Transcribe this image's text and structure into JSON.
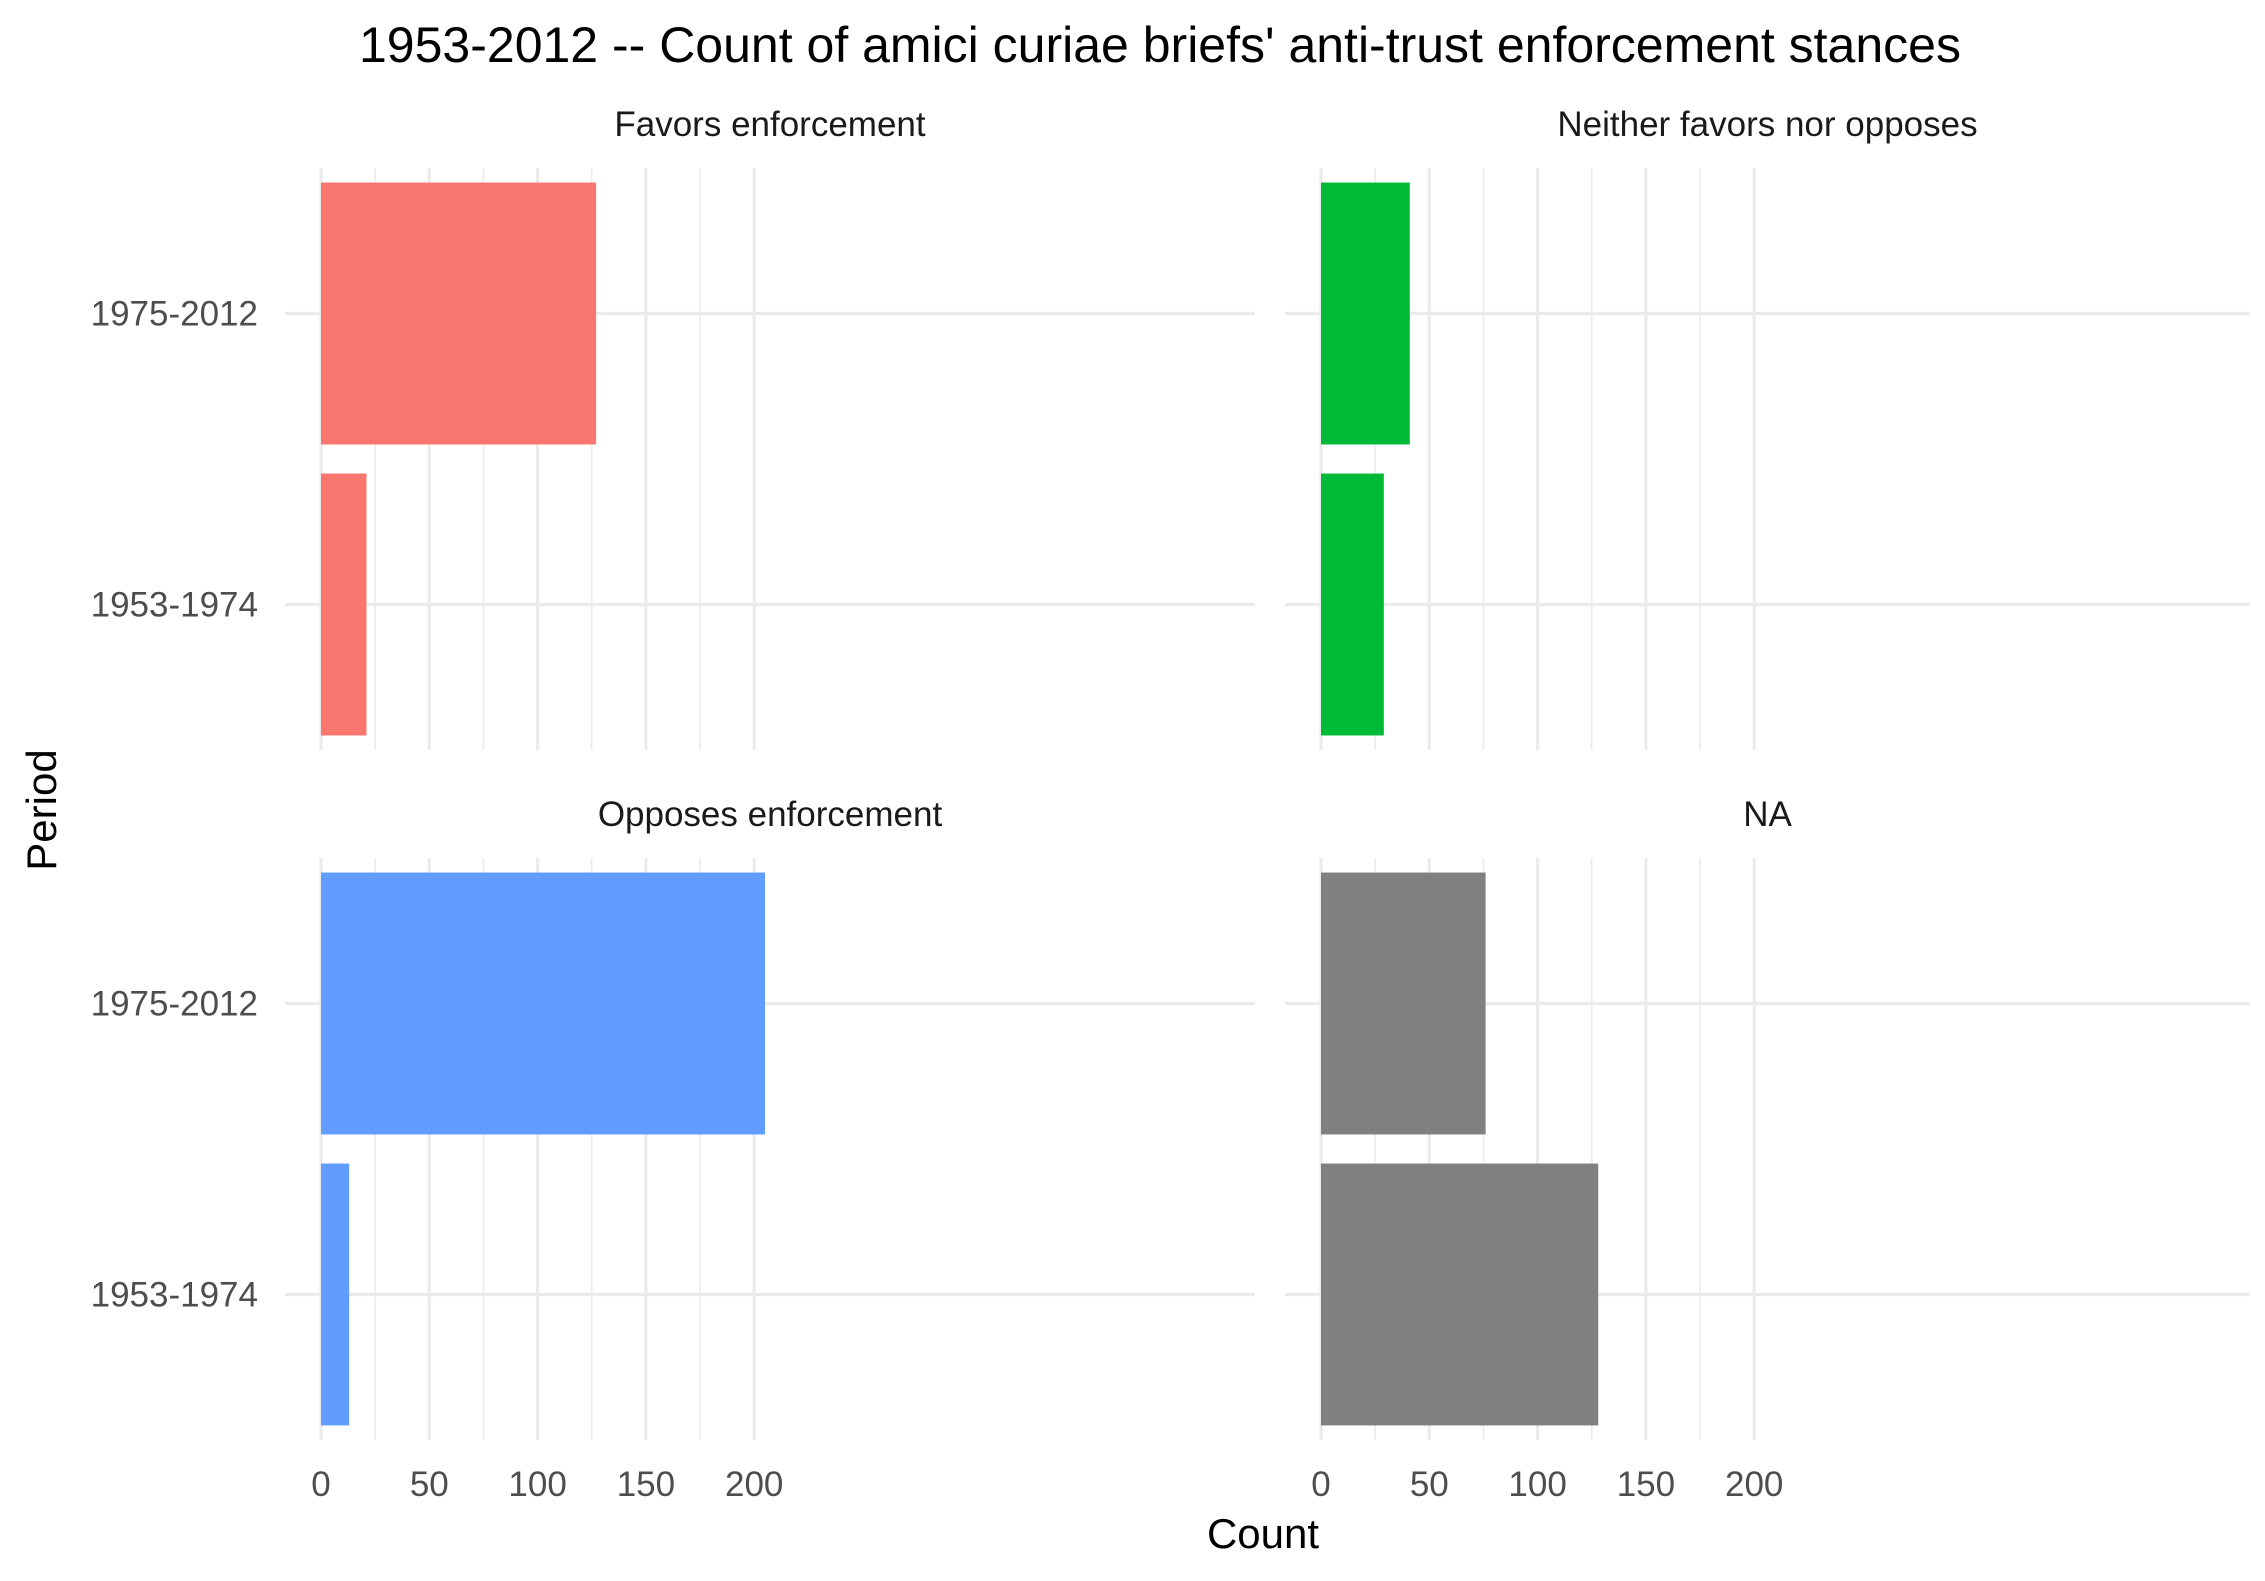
{
  "chart_data": {
    "type": "bar",
    "orientation": "horizontal",
    "title": "1953-2012 -- Count of amici curiae briefs' anti-trust enforcement stances",
    "xlabel": "Count",
    "ylabel": "Period",
    "xlim": [
      0,
      215
    ],
    "x_ticks": [
      "0",
      "50",
      "100",
      "150",
      "200"
    ],
    "categories": [
      "1975-2012",
      "1953-1974"
    ],
    "grid": true,
    "legend": "none",
    "facets": [
      {
        "label": "Favors enforcement",
        "color": "#F8766D",
        "values": [
          127,
          21
        ]
      },
      {
        "label": "Neither favors nor opposes",
        "color": "#00BA38",
        "values": [
          41,
          29
        ]
      },
      {
        "label": "Opposes enforcement",
        "color": "#619CFF",
        "values": [
          205,
          13
        ]
      },
      {
        "label": "NA",
        "color": "#808080",
        "values": [
          76,
          128
        ]
      }
    ]
  }
}
